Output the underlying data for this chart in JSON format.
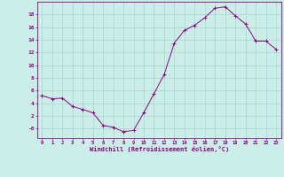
{
  "title": "",
  "xlabel": "Windchill (Refroidissement éolien,°C)",
  "ylabel": "",
  "background_color": "#cceee8",
  "line_color": "#880088",
  "marker_color": "#880088",
  "grid_color": "#aad4cc",
  "axis_color": "#880088",
  "tick_label_color": "#880088",
  "xlabel_color": "#880088",
  "ylim": [
    -1.5,
    20.0
  ],
  "xlim": [
    -0.5,
    23.5
  ],
  "yticks": [
    0,
    2,
    4,
    6,
    8,
    10,
    12,
    14,
    16,
    18
  ],
  "ytick_labels": [
    "-0",
    "2",
    "4",
    "6",
    "8",
    "10",
    "12",
    "14",
    "16",
    "18"
  ],
  "xticks": [
    0,
    1,
    2,
    3,
    4,
    5,
    6,
    7,
    8,
    9,
    10,
    11,
    12,
    13,
    14,
    15,
    16,
    17,
    18,
    19,
    20,
    21,
    22,
    23
  ],
  "hours": [
    0,
    1,
    2,
    3,
    4,
    5,
    6,
    7,
    8,
    9,
    10,
    11,
    12,
    13,
    14,
    15,
    16,
    17,
    18,
    19,
    20,
    21,
    22,
    23
  ],
  "values": [
    5.2,
    4.7,
    4.8,
    3.5,
    3.0,
    2.5,
    0.5,
    0.2,
    -0.5,
    -0.3,
    2.5,
    5.5,
    8.5,
    13.5,
    15.5,
    16.3,
    17.5,
    19.0,
    19.2,
    17.8,
    16.5,
    13.8,
    13.8,
    12.5
  ]
}
